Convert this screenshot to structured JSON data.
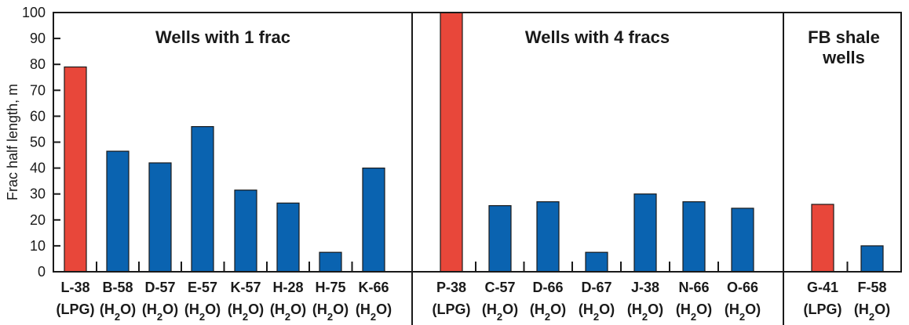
{
  "chart_data": {
    "type": "bar",
    "ylabel": "Frac half length, m",
    "ylim": [
      0,
      100
    ],
    "yticks": [
      0,
      10,
      20,
      30,
      40,
      50,
      60,
      70,
      80,
      90,
      100
    ],
    "grid": false,
    "colors": {
      "LPG": "#e8473a",
      "H2O": "#0a63b0",
      "outline": "#1a1a1a"
    },
    "groups": [
      {
        "title": "Wells with 1 frac",
        "bars": [
          {
            "well": "L-38",
            "fluid": "LPG",
            "value": 79
          },
          {
            "well": "B-58",
            "fluid": "H2O",
            "value": 46.5
          },
          {
            "well": "D-57",
            "fluid": "H2O",
            "value": 42
          },
          {
            "well": "E-57",
            "fluid": "H2O",
            "value": 56
          },
          {
            "well": "K-57",
            "fluid": "H2O",
            "value": 31.5
          },
          {
            "well": "H-28",
            "fluid": "H2O",
            "value": 26.5
          },
          {
            "well": "H-75",
            "fluid": "H2O",
            "value": 7.5
          },
          {
            "well": "K-66",
            "fluid": "H2O",
            "value": 40
          }
        ]
      },
      {
        "title": "Wells with 4 fracs",
        "bars": [
          {
            "well": "P-38",
            "fluid": "LPG",
            "value": 100
          },
          {
            "well": "C-57",
            "fluid": "H2O",
            "value": 25.5
          },
          {
            "well": "D-66",
            "fluid": "H2O",
            "value": 27
          },
          {
            "well": "D-67",
            "fluid": "H2O",
            "value": 7.5
          },
          {
            "well": "J-38",
            "fluid": "H2O",
            "value": 30
          },
          {
            "well": "N-66",
            "fluid": "H2O",
            "value": 27
          },
          {
            "well": "O-66",
            "fluid": "H2O",
            "value": 24.5
          }
        ]
      },
      {
        "title": "FB shale wells",
        "title_lines": [
          "FB shale",
          "wells"
        ],
        "bars": [
          {
            "well": "G-41",
            "fluid": "LPG",
            "value": 26
          },
          {
            "well": "F-58",
            "fluid": "H2O",
            "value": 10
          }
        ]
      }
    ]
  }
}
